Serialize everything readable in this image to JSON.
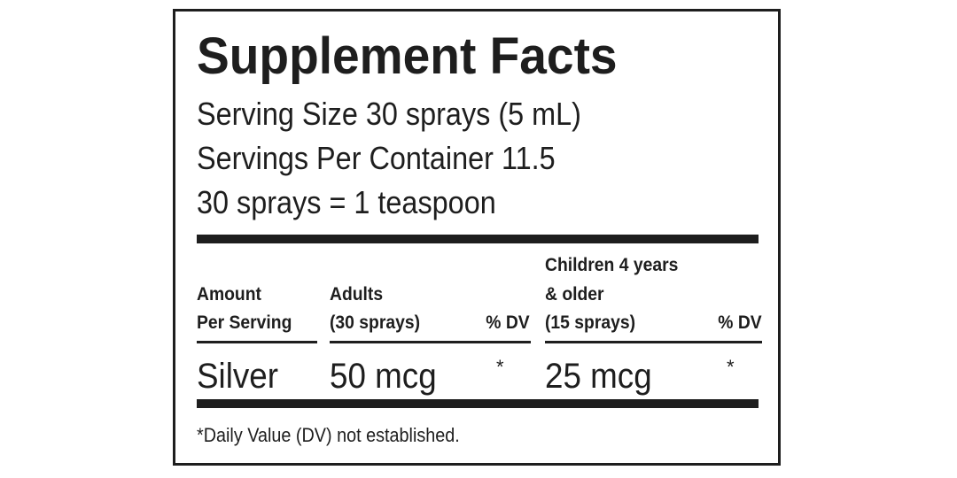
{
  "header": {
    "title": "Supplement Facts",
    "serving_info": [
      "Serving Size 30 sprays (5 mL)",
      "Servings Per Container 11.5",
      "30 sprays = 1 teaspoon"
    ]
  },
  "table": {
    "columns": [
      [
        "Amount",
        "Per Serving"
      ],
      [
        "Adults",
        "(30 sprays)"
      ],
      [
        "% DV"
      ],
      [
        "Children 4 years",
        "& older",
        "(15 sprays)"
      ],
      [
        "% DV"
      ]
    ],
    "rows": [
      [
        "Silver",
        "50 mcg",
        "*",
        "25 mcg",
        "*"
      ]
    ]
  },
  "footnote": "*Daily Value (DV) not established."
}
